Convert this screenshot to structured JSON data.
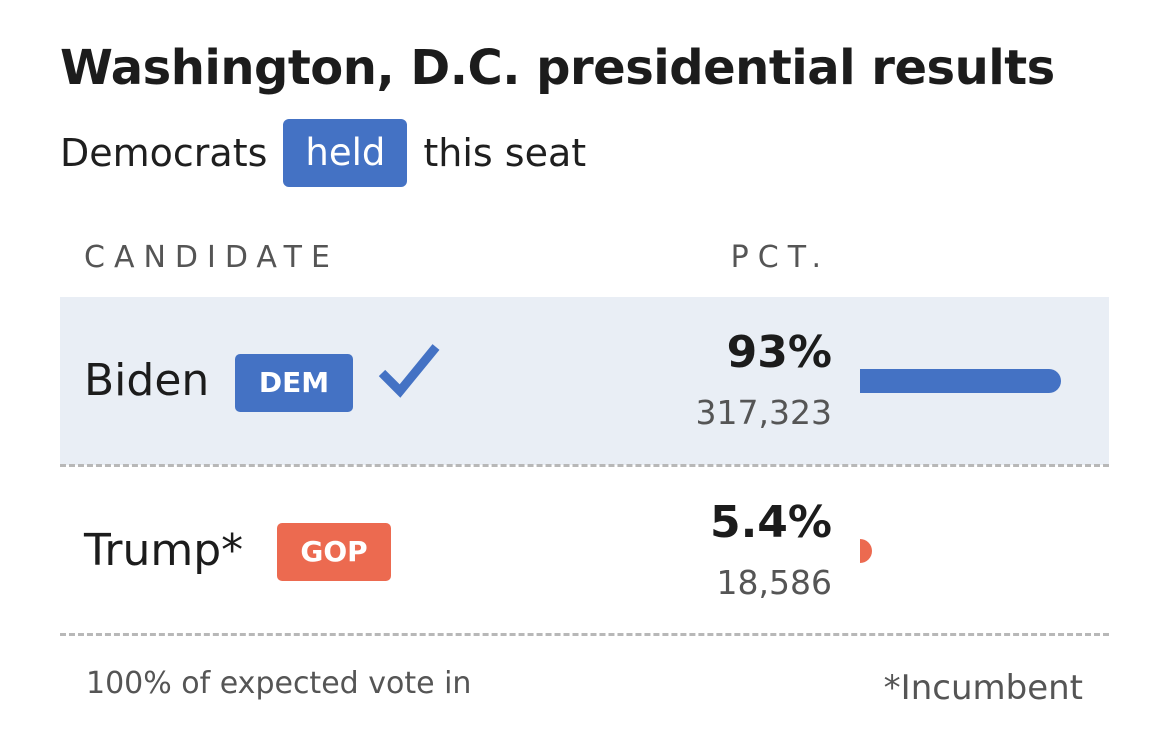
{
  "header": {
    "title": "Washington, D.C. presidential results",
    "subtitle_prefix": "Democrats",
    "status_pill": "held",
    "subtitle_suffix": "this seat"
  },
  "table": {
    "columns": {
      "candidate": "CANDIDATE",
      "pct": "PCT."
    },
    "rows": [
      {
        "name": "Biden",
        "party": "DEM",
        "winner": true,
        "pct_label": "93%",
        "pct_value": 93,
        "votes": "317,323",
        "color": "#4472c4",
        "winner_icon": "checkmark-icon"
      },
      {
        "name": "Trump*",
        "party": "GOP",
        "winner": false,
        "pct_label": "5.4%",
        "pct_value": 5.4,
        "votes": "18,586",
        "color": "#ec6a50"
      }
    ]
  },
  "footer": {
    "expected_vote": "100% of expected vote in",
    "incumbent_note": "*Incumbent"
  },
  "colors": {
    "dem": "#4472c4",
    "gop": "#ec6a50",
    "winner_row_bg": "#e9eef5"
  }
}
